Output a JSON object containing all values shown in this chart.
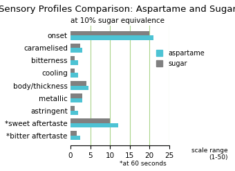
{
  "title": "Sensory Profiles Comparison: Aspartame and Sugar",
  "subtitle": "at 10% sugar equivalence",
  "categories": [
    "onset",
    "caramelised",
    "bitterness",
    "cooling",
    "body/thickness",
    "metallic",
    "astringent",
    "*sweet aftertaste",
    "*bitter aftertaste"
  ],
  "aspartame_values": [
    21,
    3,
    2,
    2,
    4.5,
    3,
    2,
    12,
    2.5
  ],
  "sugar_values": [
    20,
    2.5,
    1,
    1,
    4,
    3,
    1,
    10,
    1.5
  ],
  "aspartame_color": "#4dc3d4",
  "sugar_color": "#808080",
  "xlim": [
    0,
    25
  ],
  "xticks": [
    0,
    5,
    10,
    15,
    20,
    25
  ],
  "xlabel_note": "*at 60 seconds",
  "scale_note": "scale range\n(1-50)",
  "legend_labels": [
    "aspartame",
    "sugar"
  ],
  "bar_height": 0.35,
  "gridlines": [
    5,
    10,
    15,
    20,
    25
  ],
  "grid_color": "#aad48a"
}
